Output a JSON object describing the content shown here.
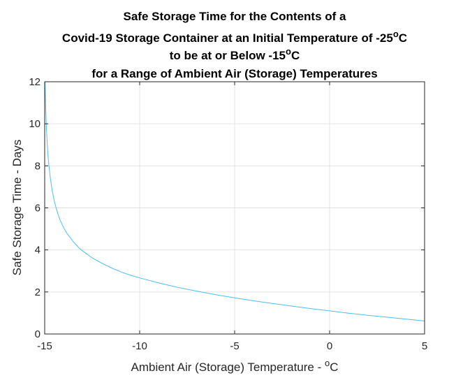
{
  "chart_data": {
    "type": "line",
    "title_lines": [
      {
        "text": "Safe Storage Time for the Contents of a",
        "sup": "",
        "after": ""
      },
      {
        "text": "Covid-19 Storage Container at an Initial Temperature of -25",
        "sup": "o",
        "after": "C"
      },
      {
        "text": "to be at or Below -15",
        "sup": "o",
        "after": "C"
      },
      {
        "text": "for a Range of Ambient Air (Storage) Temperatures",
        "sup": "",
        "after": ""
      }
    ],
    "xlabel": {
      "text": "Ambient Air (Storage) Temperature - ",
      "sup": "o",
      "after": "C"
    },
    "ylabel": "Safe Storage Time - Days",
    "xlim": [
      -15,
      5
    ],
    "ylim": [
      0,
      12
    ],
    "xticks": [
      -15,
      -10,
      -5,
      0,
      5
    ],
    "xtick_labels": [
      "-15",
      "-10",
      "-5",
      "0",
      "5"
    ],
    "yticks": [
      0,
      2,
      4,
      6,
      8,
      10,
      12
    ],
    "ytick_labels": [
      "0",
      "2",
      "4",
      "6",
      "8",
      "10",
      "12"
    ],
    "grid": true,
    "line_color": "#4DBEEE",
    "series": [
      {
        "x": [
          -14.98,
          -14.95,
          -14.9,
          -14.85,
          -14.8,
          -14.7,
          -14.6,
          -14.5,
          -14.4,
          -14.3,
          -14.2,
          -14.0,
          -13.8,
          -13.5,
          -13.2,
          -13.0,
          -12.5,
          -12.0,
          -11.5,
          -11.0,
          -10.5,
          -10.0,
          -9.0,
          -8.0,
          -7.0,
          -6.0,
          -5.0,
          -4.0,
          -3.0,
          -2.0,
          -1.0,
          0.0,
          1.0,
          2.0,
          3.0,
          4.0,
          5.0
        ],
        "values": [
          12.0,
          10.9,
          9.6,
          8.8,
          8.2,
          7.4,
          6.8,
          6.35,
          6.0,
          5.7,
          5.45,
          5.05,
          4.75,
          4.4,
          4.1,
          3.95,
          3.62,
          3.37,
          3.15,
          2.96,
          2.8,
          2.67,
          2.43,
          2.22,
          2.04,
          1.87,
          1.72,
          1.58,
          1.45,
          1.33,
          1.21,
          1.1,
          0.99,
          0.89,
          0.8,
          0.71,
          0.62
        ]
      }
    ]
  }
}
